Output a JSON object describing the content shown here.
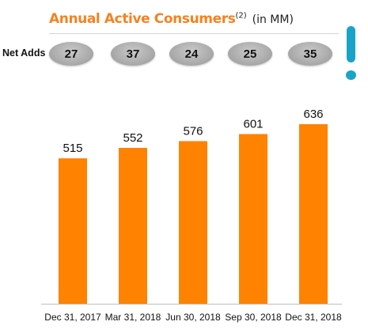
{
  "title": "Annual Active Consumers",
  "title_superscript": "(2)",
  "unit_label": "(in MM)",
  "net_adds": {
    "label": "Net Adds",
    "values": [
      "27",
      "37",
      "24",
      "25",
      "35"
    ]
  },
  "chart_data": {
    "type": "bar",
    "categories": [
      "Dec 31, 2017",
      "Mar 31, 2018",
      "Jun 30, 2018",
      "Sep 30, 2018",
      "Dec 31, 2018"
    ],
    "values": [
      515,
      552,
      576,
      601,
      636
    ],
    "title": "Annual Active Consumers",
    "unit": "(in MM)",
    "bar_color": "#FF8200",
    "ylim": [
      0,
      700
    ],
    "grid": false,
    "legend": "none"
  },
  "colors": {
    "accent": "#F58220",
    "bar": "#FF8200",
    "exclamation": "#1aa3c8"
  },
  "icons": [
    "exclamation-icon"
  ]
}
